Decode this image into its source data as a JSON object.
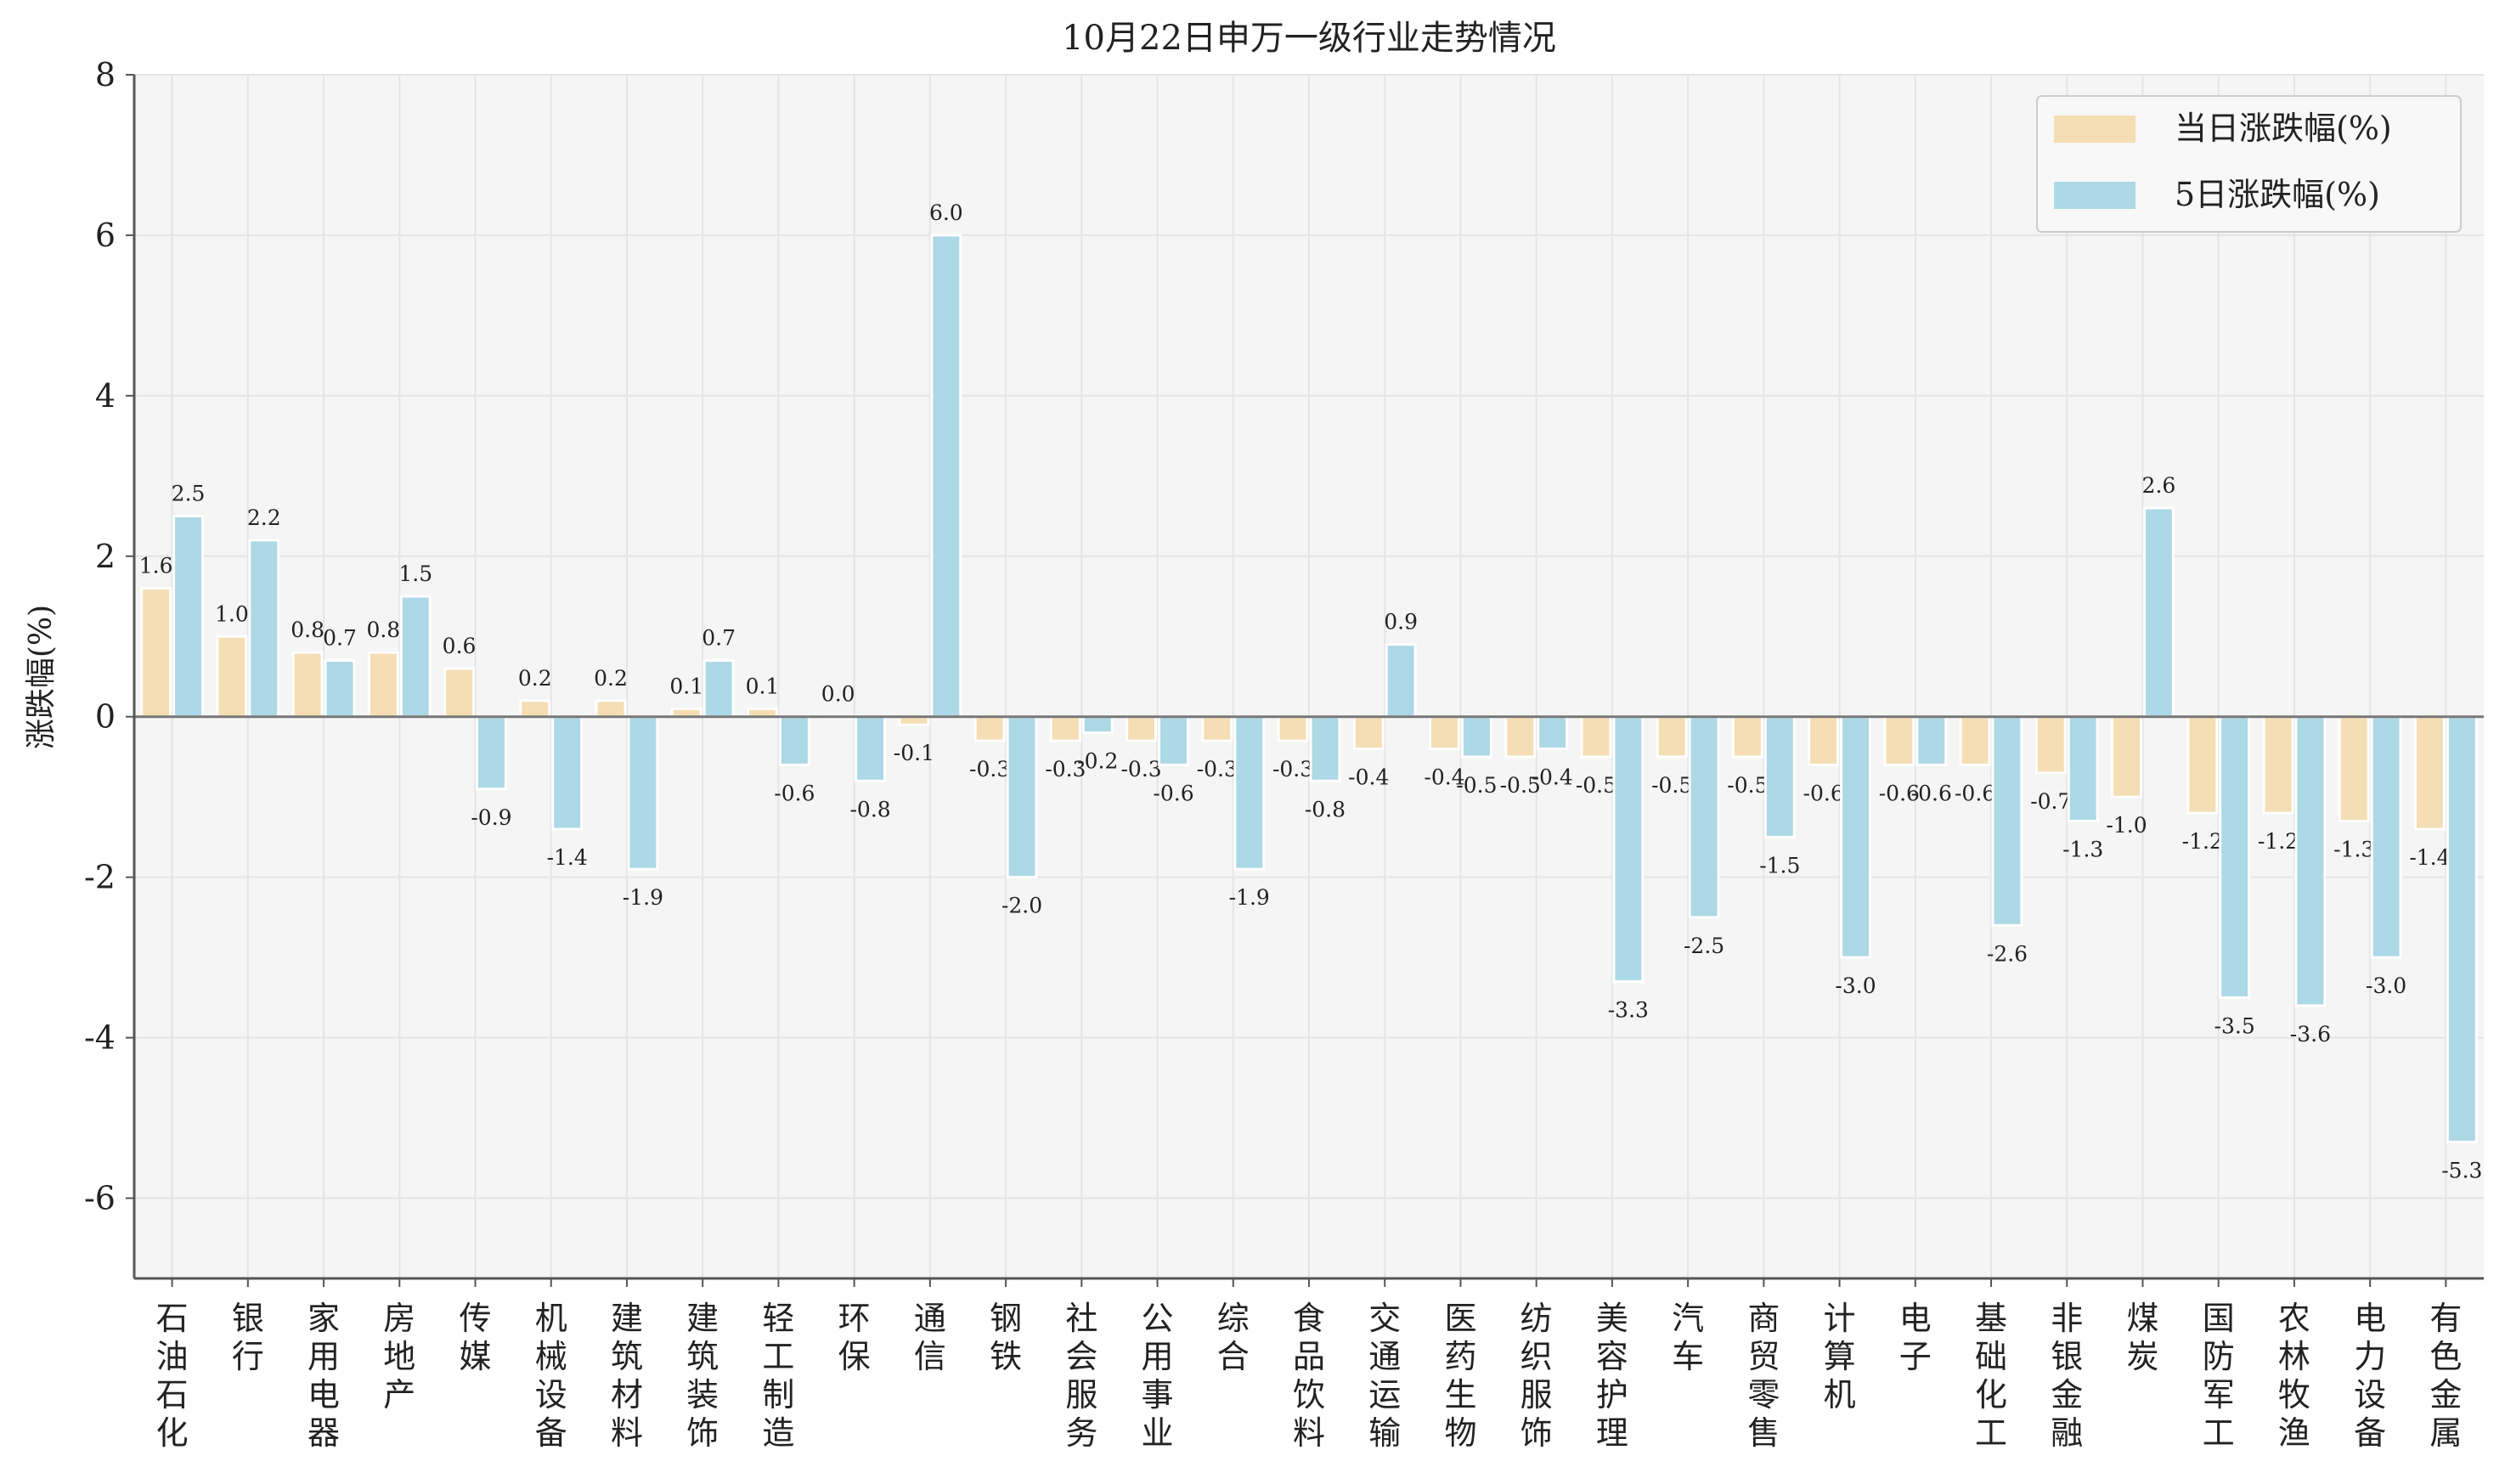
{
  "chart_data": {
    "type": "bar",
    "title": "10月22日申万一级行业走势情况",
    "xlabel": "",
    "ylabel": "涨跌幅(%)",
    "ylim": [
      -7,
      8
    ],
    "yticks": [
      -6,
      -4,
      -2,
      0,
      2,
      4,
      6,
      8
    ],
    "grid": true,
    "legend_position": "top-right",
    "categories": [
      "石油石化",
      "银行",
      "家用电器",
      "房地产",
      "传媒",
      "机械设备",
      "建筑材料",
      "建筑装饰",
      "轻工制造",
      "环保",
      "通信",
      "钢铁",
      "社会服务",
      "公用事业",
      "综合",
      "食品饮料",
      "交通运输",
      "医药生物",
      "纺织服饰",
      "美容护理",
      "汽车",
      "商贸零售",
      "计算机",
      "电子",
      "基础化工",
      "非银金融",
      "煤炭",
      "国防军工",
      "农林牧渔",
      "电力设备",
      "有色金属"
    ],
    "series": [
      {
        "name": "当日涨跌幅(%)",
        "color": "#f5deb3",
        "values": [
          1.6,
          1.0,
          0.8,
          0.8,
          0.6,
          0.2,
          0.2,
          0.1,
          0.1,
          0.0,
          -0.1,
          -0.3,
          -0.3,
          -0.3,
          -0.3,
          -0.3,
          -0.4,
          -0.4,
          -0.5,
          -0.5,
          -0.5,
          -0.5,
          -0.6,
          -0.6,
          -0.6,
          -0.7,
          -1.0,
          -1.2,
          -1.2,
          -1.3,
          -1.4
        ]
      },
      {
        "name": "5日涨跌幅(%)",
        "color": "#add8e6",
        "values": [
          2.5,
          2.2,
          0.7,
          1.5,
          -0.9,
          -1.4,
          -1.9,
          0.7,
          -0.6,
          -0.8,
          6.0,
          -2.0,
          -0.2,
          -0.6,
          -1.9,
          -0.8,
          0.9,
          -0.5,
          -0.4,
          -3.3,
          -2.5,
          -1.5,
          -3.0,
          -0.6,
          -2.6,
          -1.3,
          2.6,
          -3.5,
          -3.6,
          -3.0,
          -5.3
        ]
      }
    ]
  }
}
